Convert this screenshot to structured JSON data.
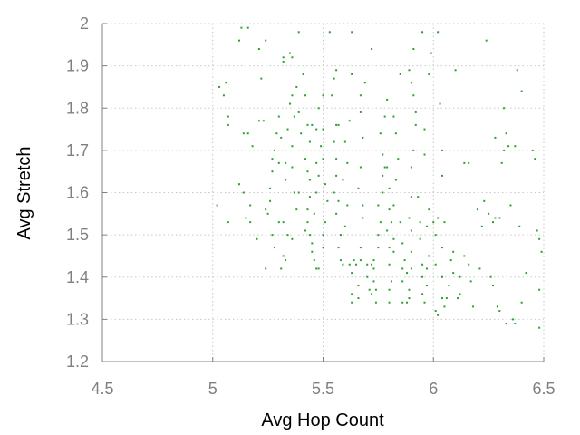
{
  "chart_data": {
    "type": "scatter",
    "title": "",
    "xlabel": "Avg Hop Count",
    "ylabel": "Avg Stretch",
    "xlim": [
      4.5,
      6.5
    ],
    "ylim": [
      1.2,
      2.0
    ],
    "xticks": [
      "4.5",
      "5",
      "5.5",
      "6",
      "6.5"
    ],
    "yticks": [
      "1.2",
      "1.3",
      "1.4",
      "1.5",
      "1.6",
      "1.7",
      "1.8",
      "1.9",
      "2"
    ],
    "grid": true,
    "colors": {
      "points": "#2ca02c",
      "axis": "#808080",
      "grid": "#c8c8c8"
    },
    "series": [
      {
        "points": [
          [
            5.13,
            1.99
          ],
          [
            5.16,
            1.99
          ],
          [
            5.12,
            1.96
          ],
          [
            5.24,
            1.96
          ],
          [
            5.21,
            1.94
          ],
          [
            5.03,
            1.85
          ],
          [
            5.06,
            1.86
          ],
          [
            5.05,
            1.83
          ],
          [
            5.22,
            1.87
          ],
          [
            5.07,
            1.78
          ],
          [
            5.07,
            1.76
          ],
          [
            5.14,
            1.74
          ],
          [
            5.16,
            1.74
          ],
          [
            5.21,
            1.77
          ],
          [
            5.18,
            1.71
          ],
          [
            5.23,
            1.77
          ],
          [
            5.12,
            1.62
          ],
          [
            5.14,
            1.6
          ],
          [
            5.17,
            1.57
          ],
          [
            5.15,
            1.54
          ],
          [
            5.17,
            1.53
          ],
          [
            5.02,
            1.57
          ],
          [
            5.07,
            1.53
          ],
          [
            5.24,
            1.42
          ],
          [
            5.2,
            1.49
          ],
          [
            5.24,
            1.56
          ],
          [
            5.25,
            1.55
          ],
          [
            5.26,
            1.58
          ],
          [
            5.26,
            1.61
          ],
          [
            5.27,
            1.65
          ],
          [
            5.28,
            1.7
          ],
          [
            5.29,
            1.74
          ],
          [
            5.3,
            1.78
          ],
          [
            5.3,
            1.67
          ],
          [
            5.27,
            1.68
          ],
          [
            5.27,
            1.5
          ],
          [
            5.28,
            1.47
          ],
          [
            5.3,
            1.53
          ],
          [
            5.31,
            1.42
          ],
          [
            5.32,
            1.45
          ],
          [
            5.33,
            1.44
          ],
          [
            5.32,
            1.53
          ],
          [
            5.33,
            1.63
          ],
          [
            5.33,
            1.67
          ],
          [
            5.31,
            1.73
          ],
          [
            5.34,
            1.75
          ],
          [
            5.32,
            1.91
          ],
          [
            5.35,
            1.93
          ],
          [
            5.36,
            1.92
          ],
          [
            5.32,
            1.92
          ],
          [
            5.36,
            1.83
          ],
          [
            5.38,
            1.85
          ],
          [
            5.35,
            1.81
          ],
          [
            5.37,
            1.78
          ],
          [
            5.39,
            1.79
          ],
          [
            5.36,
            1.71
          ],
          [
            5.36,
            1.66
          ],
          [
            5.37,
            1.6
          ],
          [
            5.38,
            1.56
          ],
          [
            5.36,
            1.49
          ],
          [
            5.34,
            1.5
          ],
          [
            5.39,
            1.6
          ],
          [
            5.4,
            1.74
          ],
          [
            5.39,
            1.98
          ],
          [
            5.41,
            1.88
          ],
          [
            5.42,
            1.83
          ],
          [
            5.43,
            1.76
          ],
          [
            5.45,
            1.76
          ],
          [
            5.44,
            1.72
          ],
          [
            5.42,
            1.68
          ],
          [
            5.43,
            1.65
          ],
          [
            5.44,
            1.63
          ],
          [
            5.44,
            1.59
          ],
          [
            5.43,
            1.56
          ],
          [
            5.43,
            1.53
          ],
          [
            5.44,
            1.5
          ],
          [
            5.45,
            1.48
          ],
          [
            5.42,
            1.51
          ],
          [
            5.45,
            1.46
          ],
          [
            5.46,
            1.44
          ],
          [
            5.47,
            1.42
          ],
          [
            5.48,
            1.42
          ],
          [
            5.46,
            1.55
          ],
          [
            5.47,
            1.6
          ],
          [
            5.48,
            1.64
          ],
          [
            5.47,
            1.67
          ],
          [
            5.49,
            1.71
          ],
          [
            5.47,
            1.75
          ],
          [
            5.48,
            1.8
          ],
          [
            5.5,
            1.83
          ],
          [
            5.5,
            1.75
          ],
          [
            5.5,
            1.68
          ],
          [
            5.51,
            1.62
          ],
          [
            5.52,
            1.58
          ],
          [
            5.51,
            1.53
          ],
          [
            5.5,
            1.5
          ],
          [
            5.5,
            1.47
          ],
          [
            5.53,
            1.98
          ],
          [
            5.55,
            1.87
          ],
          [
            5.56,
            1.89
          ],
          [
            5.54,
            1.83
          ],
          [
            5.56,
            1.76
          ],
          [
            5.57,
            1.76
          ],
          [
            5.55,
            1.72
          ],
          [
            5.56,
            1.68
          ],
          [
            5.56,
            1.64
          ],
          [
            5.55,
            1.6
          ],
          [
            5.57,
            1.58
          ],
          [
            5.56,
            1.55
          ],
          [
            5.58,
            1.5
          ],
          [
            5.57,
            1.47
          ],
          [
            5.58,
            1.44
          ],
          [
            5.59,
            1.43
          ],
          [
            5.6,
            1.52
          ],
          [
            5.61,
            1.57
          ],
          [
            5.59,
            1.63
          ],
          [
            5.61,
            1.67
          ],
          [
            5.6,
            1.72
          ],
          [
            5.62,
            1.77
          ],
          [
            5.63,
            1.98
          ],
          [
            5.63,
            1.88
          ],
          [
            5.62,
            1.43
          ],
          [
            5.63,
            1.41
          ],
          [
            5.63,
            1.36
          ],
          [
            5.63,
            1.34
          ],
          [
            5.64,
            1.44
          ],
          [
            5.65,
            1.43
          ],
          [
            5.66,
            1.38
          ],
          [
            5.66,
            1.35
          ],
          [
            5.67,
            1.44
          ],
          [
            5.67,
            1.47
          ],
          [
            5.68,
            1.54
          ],
          [
            5.68,
            1.57
          ],
          [
            5.66,
            1.61
          ],
          [
            5.67,
            1.66
          ],
          [
            5.68,
            1.73
          ],
          [
            5.67,
            1.79
          ],
          [
            5.67,
            1.83
          ],
          [
            5.69,
            1.86
          ],
          [
            5.7,
            1.43
          ],
          [
            5.7,
            1.4
          ],
          [
            5.71,
            1.37
          ],
          [
            5.72,
            1.36
          ],
          [
            5.72,
            1.94
          ],
          [
            5.72,
            1.43
          ],
          [
            5.73,
            1.44
          ],
          [
            5.73,
            1.42
          ],
          [
            5.73,
            1.39
          ],
          [
            5.74,
            1.34
          ],
          [
            5.74,
            1.37
          ],
          [
            5.75,
            1.47
          ],
          [
            5.75,
            1.5
          ],
          [
            5.76,
            1.53
          ],
          [
            5.75,
            1.57
          ],
          [
            5.77,
            1.6
          ],
          [
            5.77,
            1.64
          ],
          [
            5.78,
            1.66
          ],
          [
            5.77,
            1.69
          ],
          [
            5.76,
            1.74
          ],
          [
            5.78,
            1.78
          ],
          [
            5.79,
            1.82
          ],
          [
            5.79,
            1.66
          ],
          [
            5.8,
            1.61
          ],
          [
            5.8,
            1.56
          ],
          [
            5.79,
            1.51
          ],
          [
            5.8,
            1.47
          ],
          [
            5.8,
            1.43
          ],
          [
            5.8,
            1.37
          ],
          [
            5.8,
            1.34
          ],
          [
            5.81,
            1.39
          ],
          [
            5.82,
            1.46
          ],
          [
            5.82,
            1.49
          ],
          [
            5.81,
            1.53
          ],
          [
            5.82,
            1.57
          ],
          [
            5.83,
            1.63
          ],
          [
            5.84,
            1.68
          ],
          [
            5.83,
            1.74
          ],
          [
            5.82,
            1.78
          ],
          [
            5.85,
            1.88
          ],
          [
            5.85,
            1.53
          ],
          [
            5.86,
            1.48
          ],
          [
            5.86,
            1.42
          ],
          [
            5.86,
            1.39
          ],
          [
            5.86,
            1.34
          ],
          [
            5.87,
            1.44
          ],
          [
            5.88,
            1.41
          ],
          [
            5.89,
            1.35
          ],
          [
            5.88,
            1.34
          ],
          [
            5.89,
            1.37
          ],
          [
            5.9,
            1.42
          ],
          [
            5.9,
            1.46
          ],
          [
            5.9,
            1.51
          ],
          [
            5.89,
            1.54
          ],
          [
            5.9,
            1.59
          ],
          [
            5.9,
            1.66
          ],
          [
            5.91,
            1.7
          ],
          [
            5.92,
            1.76
          ],
          [
            5.92,
            1.79
          ],
          [
            5.91,
            1.83
          ],
          [
            5.9,
            1.86
          ],
          [
            5.89,
            1.89
          ],
          [
            5.91,
            1.94
          ],
          [
            5.93,
            1.59
          ],
          [
            5.94,
            1.53
          ],
          [
            5.94,
            1.49
          ],
          [
            5.95,
            1.43
          ],
          [
            5.95,
            1.4
          ],
          [
            5.95,
            1.36
          ],
          [
            5.96,
            1.34
          ],
          [
            5.97,
            1.38
          ],
          [
            5.97,
            1.42
          ],
          [
            5.98,
            1.45
          ],
          [
            5.97,
            1.52
          ],
          [
            5.98,
            1.56
          ],
          [
            5.96,
            1.69
          ],
          [
            5.96,
            1.75
          ],
          [
            5.95,
            1.98
          ],
          [
            5.99,
            1.93
          ],
          [
            5.98,
            1.88
          ],
          [
            6.0,
            1.53
          ],
          [
            6.01,
            1.5
          ],
          [
            6.01,
            1.43
          ],
          [
            6.01,
            1.32
          ],
          [
            6.02,
            1.31
          ],
          [
            6.02,
            1.54
          ],
          [
            6.02,
            1.98
          ],
          [
            6.03,
            1.81
          ],
          [
            6.04,
            1.7
          ],
          [
            6.04,
            1.64
          ],
          [
            6.05,
            1.53
          ],
          [
            6.04,
            1.47
          ],
          [
            6.04,
            1.4
          ],
          [
            6.04,
            1.35
          ],
          [
            6.05,
            1.33
          ],
          [
            6.06,
            1.35
          ],
          [
            6.07,
            1.38
          ],
          [
            6.08,
            1.44
          ],
          [
            6.09,
            1.41
          ],
          [
            6.09,
            1.46
          ],
          [
            6.1,
            1.89
          ],
          [
            6.11,
            1.35
          ],
          [
            6.12,
            1.36
          ],
          [
            6.12,
            1.4
          ],
          [
            6.14,
            1.45
          ],
          [
            6.14,
            1.67
          ],
          [
            6.16,
            1.67
          ],
          [
            6.16,
            1.43
          ],
          [
            6.17,
            1.39
          ],
          [
            6.18,
            1.33
          ],
          [
            6.2,
            1.56
          ],
          [
            6.21,
            1.42
          ],
          [
            6.22,
            1.52
          ],
          [
            6.23,
            1.58
          ],
          [
            6.24,
            1.96
          ],
          [
            6.25,
            1.55
          ],
          [
            6.26,
            1.4
          ],
          [
            6.27,
            1.38
          ],
          [
            6.27,
            1.53
          ],
          [
            6.28,
            1.54
          ],
          [
            6.28,
            1.73
          ],
          [
            6.29,
            1.33
          ],
          [
            6.3,
            1.54
          ],
          [
            6.3,
            1.32
          ],
          [
            6.31,
            1.67
          ],
          [
            6.32,
            1.7
          ],
          [
            6.32,
            1.8
          ],
          [
            6.33,
            1.74
          ],
          [
            6.33,
            1.29
          ],
          [
            6.34,
            1.71
          ],
          [
            6.35,
            1.57
          ],
          [
            6.36,
            1.3
          ],
          [
            6.37,
            1.29
          ],
          [
            6.37,
            1.71
          ],
          [
            6.38,
            1.89
          ],
          [
            6.39,
            1.52
          ],
          [
            6.4,
            1.84
          ],
          [
            6.4,
            1.34
          ],
          [
            6.42,
            1.41
          ],
          [
            6.45,
            1.7
          ],
          [
            6.46,
            1.68
          ],
          [
            6.47,
            1.51
          ],
          [
            6.48,
            1.49
          ],
          [
            6.48,
            1.37
          ],
          [
            6.48,
            1.28
          ],
          [
            6.49,
            1.46
          ]
        ]
      }
    ]
  }
}
